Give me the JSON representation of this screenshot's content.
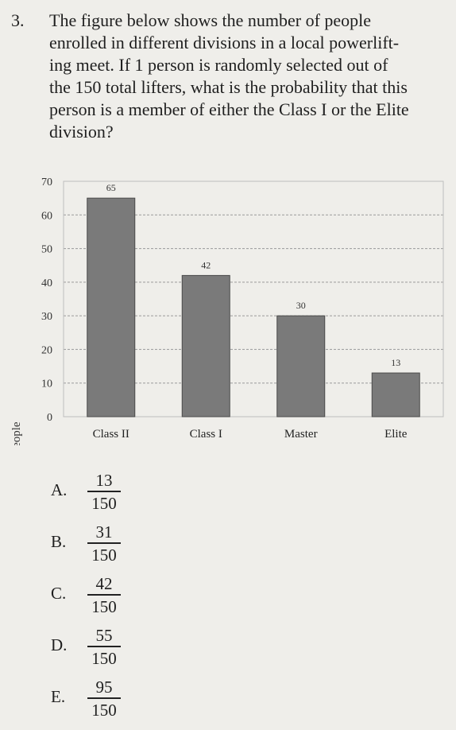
{
  "question": {
    "number": "3.",
    "lines": [
      "The figure below shows the number of people",
      "enrolled in different divisions in a local powerlift-",
      "ing meet. If 1 person is randomly selected out of",
      "the 150 total lifters, what is the probability that this",
      "person is a member of either the Class I or the Elite",
      "division?"
    ]
  },
  "chart_data": {
    "type": "bar",
    "categories": [
      "Class II",
      "Class I",
      "Master",
      "Elite"
    ],
    "values": [
      65,
      42,
      30,
      13
    ],
    "data_labels": [
      "65",
      "42",
      "30",
      "13"
    ],
    "ylabel": "Number of people",
    "xlabel": "",
    "ylim": [
      0,
      70
    ],
    "yticks": [
      "0",
      "10",
      "20",
      "30",
      "40",
      "50",
      "60",
      "70"
    ],
    "grid": true,
    "bar_color": "#7a7a7a"
  },
  "choices": [
    {
      "letter": "A.",
      "numerator": "13",
      "denominator": "150"
    },
    {
      "letter": "B.",
      "numerator": "31",
      "denominator": "150"
    },
    {
      "letter": "C.",
      "numerator": "42",
      "denominator": "150"
    },
    {
      "letter": "D.",
      "numerator": "55",
      "denominator": "150"
    },
    {
      "letter": "E.",
      "numerator": "95",
      "denominator": "150"
    }
  ]
}
